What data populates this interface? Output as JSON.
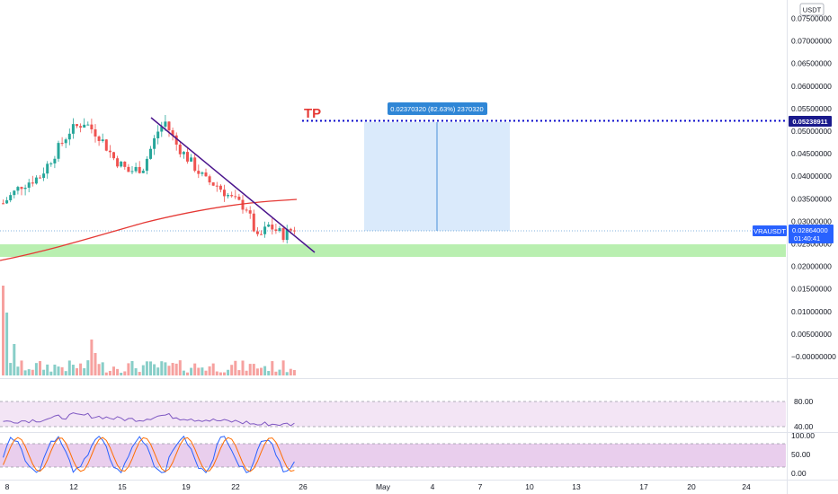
{
  "symbol": "VRAUSDT",
  "currency": "USDT",
  "last_price": "0.02864000",
  "countdown": "01:40:41",
  "target_price": "0.05238911",
  "tp_label": "TP",
  "measure_label": "0.02370320 (82.63%) 2370320",
  "price_axis": [
    {
      "label": "0.07500000",
      "v": 0.075
    },
    {
      "label": "0.07000000",
      "v": 0.07
    },
    {
      "label": "0.06500000",
      "v": 0.065
    },
    {
      "label": "0.06000000",
      "v": 0.06
    },
    {
      "label": "0.05500000",
      "v": 0.055
    },
    {
      "label": "0.05000000",
      "v": 0.05
    },
    {
      "label": "0.04500000",
      "v": 0.045
    },
    {
      "label": "0.04000000",
      "v": 0.04
    },
    {
      "label": "0.03500000",
      "v": 0.035
    },
    {
      "label": "0.03000000",
      "v": 0.03
    },
    {
      "label": "0.02500000",
      "v": 0.025
    },
    {
      "label": "0.02000000",
      "v": 0.02
    },
    {
      "label": "0.01500000",
      "v": 0.015
    },
    {
      "label": "0.01000000",
      "v": 0.01
    },
    {
      "label": "0.00500000",
      "v": 0.005
    },
    {
      "label": "−0.00000000",
      "v": 0.0
    }
  ],
  "rsi_axis": [
    {
      "label": "80.00",
      "v": 80
    },
    {
      "label": "40.00",
      "v": 40
    }
  ],
  "stoch_axis": [
    {
      "label": "100.00",
      "v": 100
    },
    {
      "label": "50.00",
      "v": 50
    },
    {
      "label": "0.00",
      "v": 0
    }
  ],
  "time_axis": [
    "8",
    "12",
    "15",
    "19",
    "22",
    "26",
    "May",
    "4",
    "7",
    "10",
    "13",
    "17",
    "20",
    "24"
  ],
  "colors": {
    "up": "#26a69a",
    "down": "#ef5350",
    "trendline": "#4a148c",
    "ma": "#e53935",
    "tp_line": "#0d0dcc",
    "support_zone": "#b9efb0",
    "measure_fill": "#d6e8fb",
    "measure_line": "#4a90d9",
    "rsi_band": "#f3e5f5",
    "stoch_band": "#e1bee7",
    "price_tag": "#2962ff"
  }
}
